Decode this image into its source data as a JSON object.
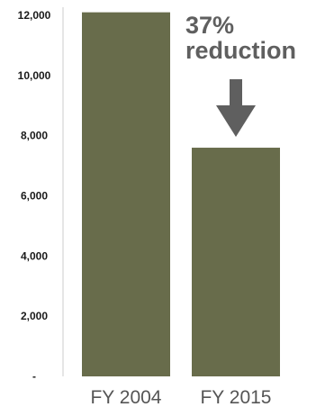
{
  "chart_data": {
    "type": "bar",
    "categories": [
      "FY 2004",
      "FY 2015"
    ],
    "values": [
      12100,
      7600
    ],
    "ylim": [
      0,
      12000
    ],
    "yticks": [
      {
        "value": 0,
        "label": "-"
      },
      {
        "value": 2000,
        "label": "2,000"
      },
      {
        "value": 4000,
        "label": "4,000"
      },
      {
        "value": 6000,
        "label": "6,000"
      },
      {
        "value": 8000,
        "label": "8,000"
      },
      {
        "value": 10000,
        "label": "10,000"
      },
      {
        "value": 12000,
        "label": "12,000"
      }
    ],
    "annotation": {
      "line1": "37%",
      "line2": "reduction"
    },
    "grid": false,
    "colors": {
      "bar": "#686c4b",
      "axis": "#cccccc",
      "arrow": "#5f5f5f",
      "annotation": "#5f5f5f"
    }
  }
}
